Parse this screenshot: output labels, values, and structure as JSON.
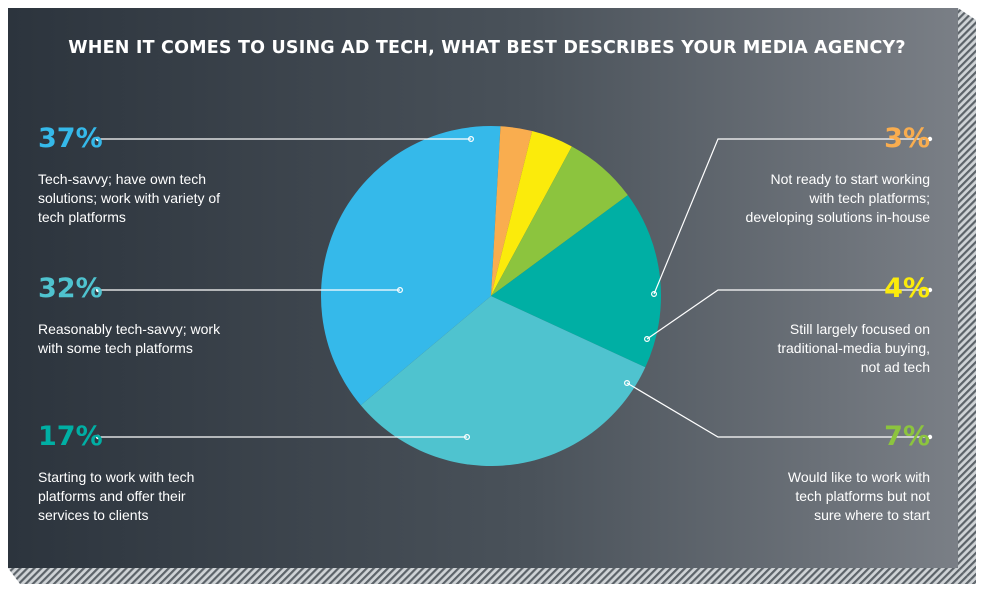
{
  "chart_data": {
    "type": "pie",
    "title": "WHEN IT COMES TO USING AD TECH, WHAT BEST DESCRIBES YOUR MEDIA AGENCY?",
    "slices": [
      {
        "label": "Tech-savvy; have own tech solutions; work with variety of tech platforms",
        "value": 37,
        "display": "37%",
        "color": "#35b9ea"
      },
      {
        "label": "Not ready to start working with tech platforms; developing solutions in-house",
        "value": 3,
        "display": "3%",
        "color": "#f9ad4f"
      },
      {
        "label": "Still largely focused on traditional-media buying, not ad tech",
        "value": 4,
        "display": "4%",
        "color": "#fbeb0b"
      },
      {
        "label": "Would like to work with tech platforms but not sure where to start",
        "value": 7,
        "display": "7%",
        "color": "#8cc43e"
      },
      {
        "label": "Starting to work with tech platforms and offer their services to clients",
        "value": 17,
        "display": "17%",
        "color": "#00afa4"
      },
      {
        "label": "Reasonably tech-savvy; work with some tech platforms",
        "value": 32,
        "display": "32%",
        "color": "#4fc3cf"
      }
    ]
  },
  "labels": {
    "l37": {
      "pct": "37%",
      "lines": [
        "Tech-savvy; have own tech",
        "solutions; work with variety of",
        "tech platforms"
      ],
      "color": "#35b9ea"
    },
    "l32": {
      "pct": "32%",
      "lines": [
        "Reasonably tech-savvy; work",
        "with some tech platforms"
      ],
      "color": "#4fc3cf"
    },
    "l17": {
      "pct": "17%",
      "lines": [
        "Starting to work with tech",
        "platforms and offer their",
        "services to clients"
      ],
      "color": "#00afa4"
    },
    "l3": {
      "pct": "3%",
      "lines": [
        "Not ready to start working",
        "with tech platforms;",
        "developing solutions in-house"
      ],
      "color": "#f9ad4f"
    },
    "l4": {
      "pct": "4%",
      "lines": [
        "Still largely focused on",
        "traditional-media buying,",
        "not ad tech"
      ],
      "color": "#fbeb0b"
    },
    "l7": {
      "pct": "7%",
      "lines": [
        "Would like to work with",
        "tech platforms but not",
        "sure where to start"
      ],
      "color": "#8cc43e"
    }
  }
}
